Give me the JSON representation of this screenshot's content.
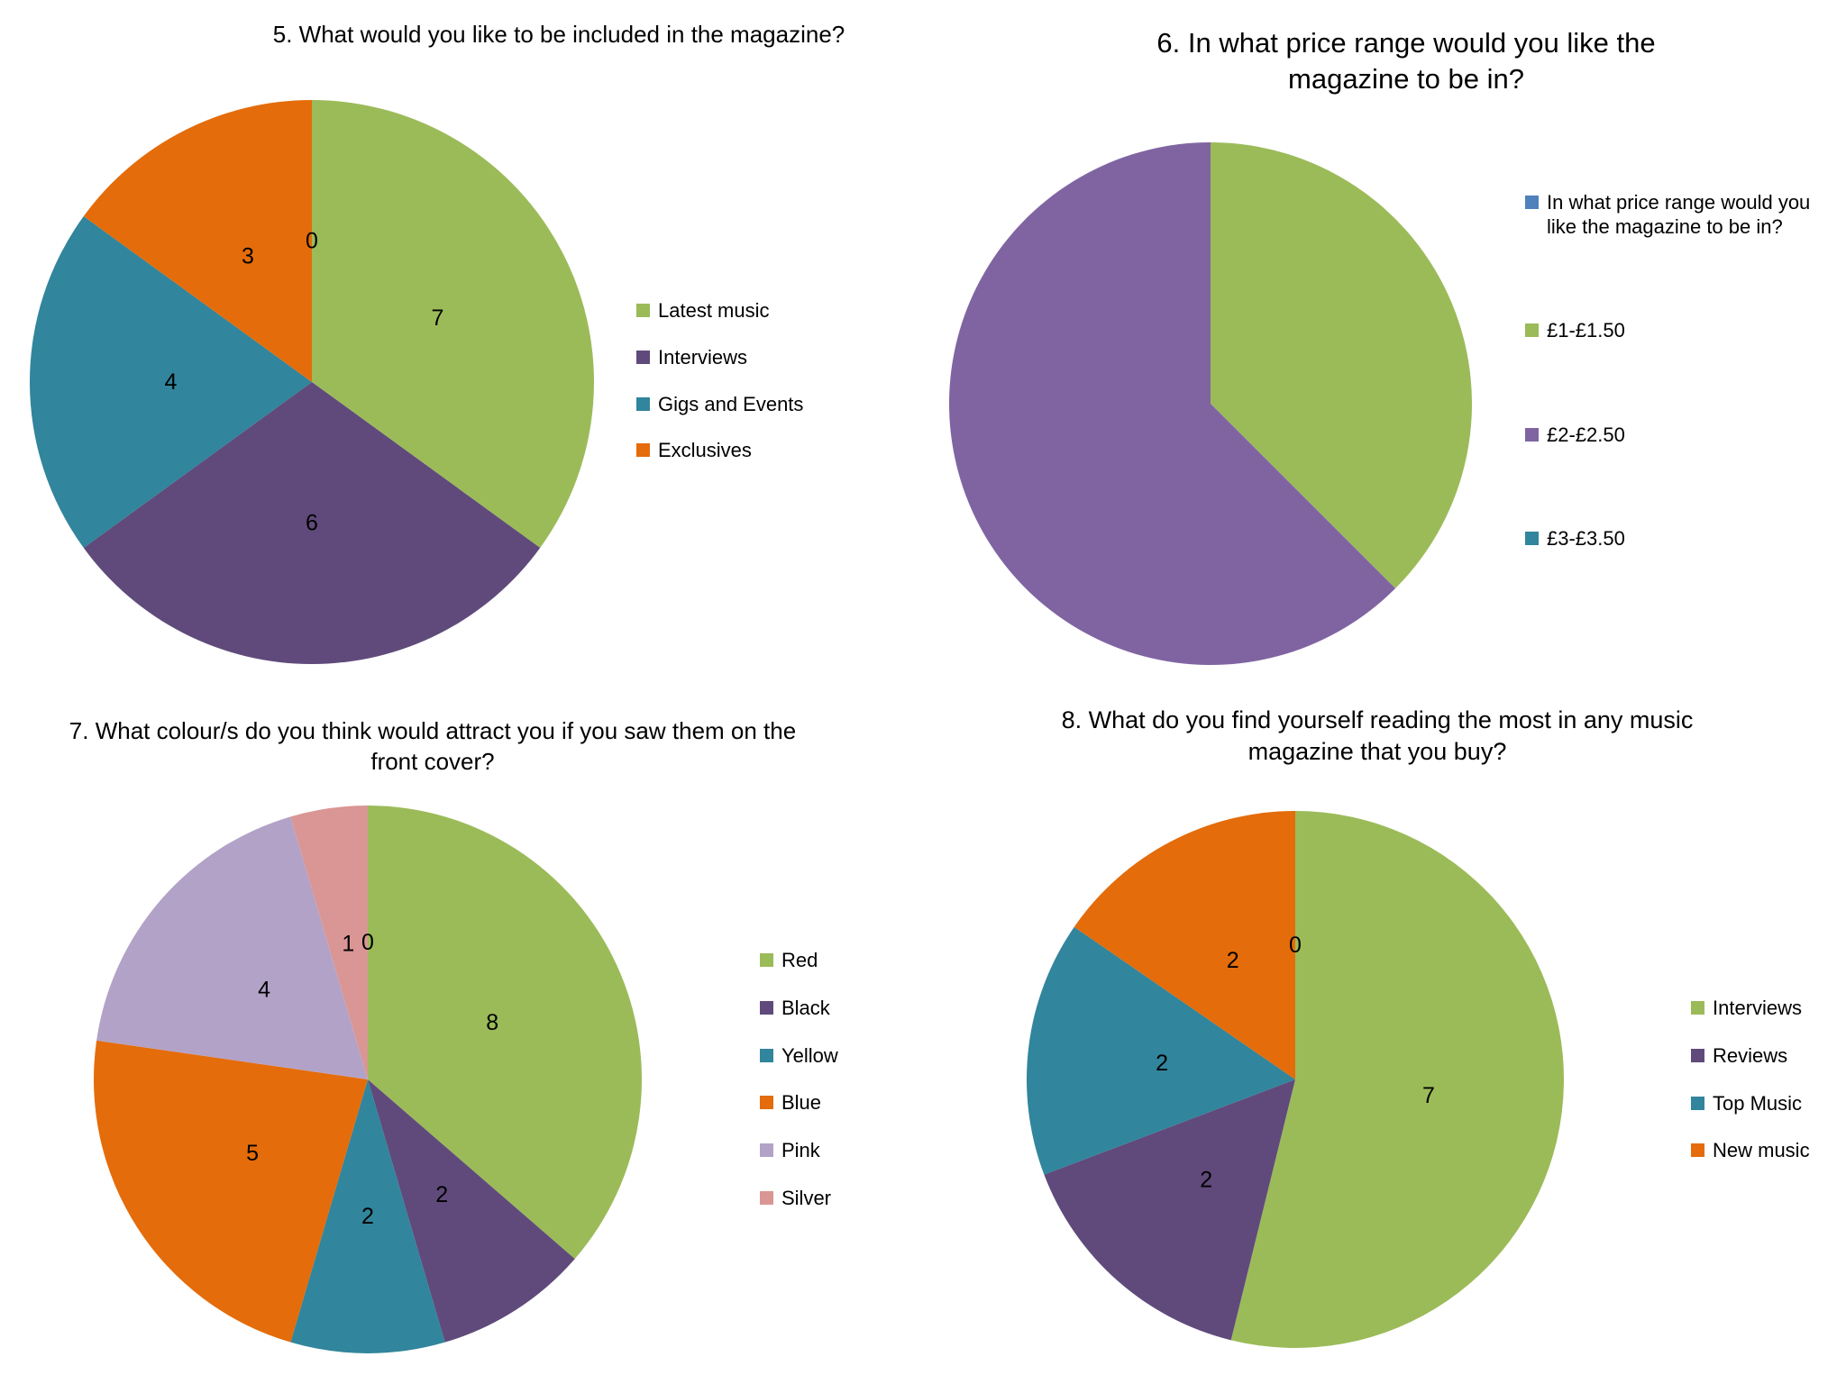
{
  "page": {
    "background": "#ffffff",
    "text_color": "#000000",
    "description": "Four survey-results pie charts about a music magazine"
  },
  "palette": {
    "green": "#9BBB59",
    "dark_purple": "#604A7B",
    "light_purple": "#8064A2",
    "teal": "#31859C",
    "orange": "#E46C0A",
    "lavender": "#B3A2C7",
    "pink": "#D99694",
    "legend_blue": "#4F81BD"
  },
  "chart_data": [
    {
      "type": "pie",
      "title": "5. What would you like to be included in the magazine?",
      "legend_position": "right",
      "start_angle_deg": 0,
      "slices": [
        {
          "label": "",
          "value": 0,
          "color": "#4F81BD",
          "in_legend": false,
          "show_value": true
        },
        {
          "label": "Latest music",
          "value": 7,
          "color": "#9BBB59",
          "in_legend": true,
          "show_value": true
        },
        {
          "label": "Interviews",
          "value": 6,
          "color": "#604A7B",
          "in_legend": true,
          "show_value": true
        },
        {
          "label": "Gigs and Events",
          "value": 4,
          "color": "#31859C",
          "in_legend": true,
          "show_value": true
        },
        {
          "label": "Exclusives",
          "value": 3,
          "color": "#E46C0A",
          "in_legend": true,
          "show_value": true
        }
      ]
    },
    {
      "type": "pie",
      "title": "6. In what price range would you like the magazine to be in?",
      "legend_position": "right",
      "start_angle_deg": 0,
      "slices": [
        {
          "label": "In what price range would you like the magazine to be in?",
          "value": 0,
          "color": "#4F81BD",
          "in_legend": true,
          "show_value": false
        },
        {
          "label": "£1-£1.50",
          "value": 6,
          "color": "#9BBB59",
          "in_legend": true,
          "show_value": false
        },
        {
          "label": "£2-£2.50",
          "value": 10,
          "color": "#8064A2",
          "in_legend": true,
          "show_value": false
        },
        {
          "label": "£3-£3.50",
          "value": 0,
          "color": "#31859C",
          "in_legend": true,
          "show_value": false
        }
      ]
    },
    {
      "type": "pie",
      "title": "7. What colour/s do you think would attract you if you saw them on the front cover?",
      "legend_position": "right",
      "start_angle_deg": 0,
      "slices": [
        {
          "label": "",
          "value": 0,
          "color": "#4F81BD",
          "in_legend": false,
          "show_value": true
        },
        {
          "label": "Red",
          "value": 8,
          "color": "#9BBB59",
          "in_legend": true,
          "show_value": true
        },
        {
          "label": "Black",
          "value": 2,
          "color": "#604A7B",
          "in_legend": true,
          "show_value": true
        },
        {
          "label": "Yellow",
          "value": 2,
          "color": "#31859C",
          "in_legend": true,
          "show_value": true
        },
        {
          "label": "Blue",
          "value": 5,
          "color": "#E46C0A",
          "in_legend": true,
          "show_value": true
        },
        {
          "label": "Pink",
          "value": 4,
          "color": "#B3A2C7",
          "in_legend": true,
          "show_value": true
        },
        {
          "label": "Silver",
          "value": 1,
          "color": "#D99694",
          "in_legend": true,
          "show_value": true
        }
      ]
    },
    {
      "type": "pie",
      "title": "8. What do you find yourself reading the most in any music magazine that you buy?",
      "legend_position": "right",
      "start_angle_deg": 0,
      "slices": [
        {
          "label": "",
          "value": 0,
          "color": "#4F81BD",
          "in_legend": false,
          "show_value": true
        },
        {
          "label": "Interviews",
          "value": 7,
          "color": "#9BBB59",
          "in_legend": true,
          "show_value": true
        },
        {
          "label": "Reviews",
          "value": 2,
          "color": "#604A7B",
          "in_legend": true,
          "show_value": true
        },
        {
          "label": "Top Music",
          "value": 2,
          "color": "#31859C",
          "in_legend": true,
          "show_value": true
        },
        {
          "label": "New music",
          "value": 2,
          "color": "#E46C0A",
          "in_legend": true,
          "show_value": true
        }
      ]
    }
  ]
}
